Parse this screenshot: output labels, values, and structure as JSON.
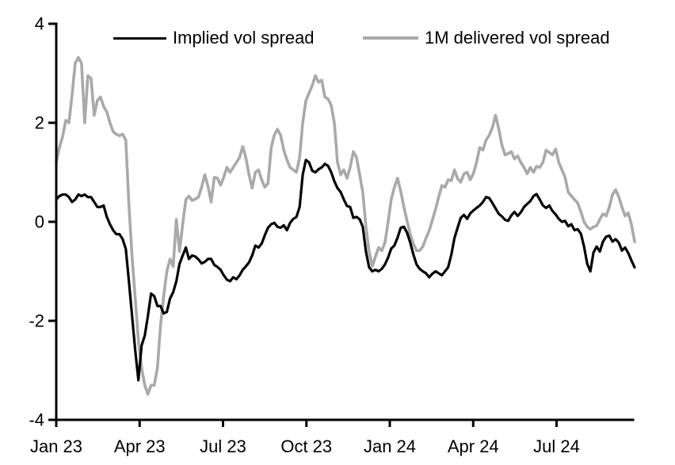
{
  "chart_data": {
    "type": "line",
    "title": "",
    "grid": false,
    "legend_position": "top-inside",
    "axis_color": "#000000",
    "background_color": "#ffffff",
    "x_axis": {
      "label": "",
      "min": 0,
      "max": 20.75,
      "ticks": [
        {
          "pos": 0,
          "label": "Jan 23"
        },
        {
          "pos": 3,
          "label": "Apr 23"
        },
        {
          "pos": 6,
          "label": "Jul 23"
        },
        {
          "pos": 9,
          "label": "Oct 23"
        },
        {
          "pos": 12,
          "label": "Jan 24"
        },
        {
          "pos": 15,
          "label": "Apr 24"
        },
        {
          "pos": 18,
          "label": "Jul 24"
        }
      ]
    },
    "y_axis": {
      "label": "",
      "min": -4,
      "max": 4,
      "ticks": [
        {
          "pos": 4,
          "label": "4"
        },
        {
          "pos": 2,
          "label": "2"
        },
        {
          "pos": 0,
          "label": "0"
        },
        {
          "pos": -2,
          "label": "-2"
        },
        {
          "pos": -4,
          "label": "-4"
        }
      ]
    },
    "sample_x_start": 0,
    "sample_x_step": 0.1137,
    "series": [
      {
        "name": "Implied vol spread",
        "color": "#000000",
        "stroke_width": 3.2,
        "values": [
          0.45,
          0.52,
          0.55,
          0.55,
          0.5,
          0.4,
          0.45,
          0.55,
          0.52,
          0.55,
          0.5,
          0.5,
          0.4,
          0.3,
          0.3,
          0.33,
          0.1,
          -0.05,
          -0.17,
          -0.25,
          -0.25,
          -0.35,
          -0.55,
          -1.2,
          -1.9,
          -2.6,
          -3.2,
          -2.5,
          -2.3,
          -1.9,
          -1.45,
          -1.5,
          -1.7,
          -1.7,
          -1.85,
          -1.82,
          -1.55,
          -1.42,
          -1.2,
          -0.85,
          -0.68,
          -0.52,
          -0.75,
          -0.68,
          -0.7,
          -0.76,
          -0.84,
          -0.81,
          -0.75,
          -0.75,
          -0.87,
          -0.91,
          -0.97,
          -1.08,
          -1.17,
          -1.2,
          -1.12,
          -1.16,
          -1.08,
          -0.97,
          -0.9,
          -0.82,
          -0.68,
          -0.48,
          -0.52,
          -0.44,
          -0.27,
          -0.12,
          -0.05,
          -0.02,
          -0.1,
          -0.12,
          -0.07,
          -0.17,
          -0.02,
          0.06,
          0.1,
          0.3,
          0.95,
          1.25,
          1.2,
          1.03,
          1.0,
          1.06,
          1.1,
          1.17,
          1.13,
          1.0,
          0.82,
          0.68,
          0.6,
          0.45,
          0.32,
          0.3,
          0.08,
          0.1,
          0.05,
          -0.1,
          -0.6,
          -0.92,
          -1.0,
          -0.97,
          -1.0,
          -0.95,
          -0.86,
          -0.72,
          -0.54,
          -0.48,
          -0.32,
          -0.12,
          -0.1,
          -0.22,
          -0.42,
          -0.66,
          -0.86,
          -0.95,
          -1.0,
          -1.04,
          -1.12,
          -1.05,
          -1.0,
          -1.04,
          -1.08,
          -1.0,
          -0.92,
          -0.67,
          -0.33,
          -0.12,
          0.08,
          0.14,
          0.06,
          0.17,
          0.23,
          0.28,
          0.33,
          0.4,
          0.5,
          0.48,
          0.38,
          0.27,
          0.16,
          0.11,
          0.04,
          0.02,
          0.13,
          0.2,
          0.12,
          0.19,
          0.3,
          0.36,
          0.42,
          0.52,
          0.56,
          0.45,
          0.33,
          0.28,
          0.33,
          0.22,
          0.15,
          0.06,
          0.0,
          0.02,
          -0.09,
          -0.05,
          -0.17,
          -0.15,
          -0.24,
          -0.5,
          -0.85,
          -1.0,
          -0.62,
          -0.5,
          -0.6,
          -0.4,
          -0.3,
          -0.28,
          -0.4,
          -0.35,
          -0.42,
          -0.58,
          -0.52,
          -0.63,
          -0.78,
          -0.92
        ]
      },
      {
        "name": "1M delivered vol spread",
        "color": "#a9a9a9",
        "stroke_width": 3.6,
        "values": [
          1.2,
          1.5,
          1.72,
          2.05,
          2.0,
          2.55,
          3.2,
          3.32,
          3.2,
          2.0,
          2.95,
          2.9,
          2.15,
          2.45,
          2.52,
          2.33,
          2.22,
          2.0,
          1.82,
          1.77,
          1.74,
          1.77,
          1.65,
          0.35,
          -0.7,
          -1.55,
          -2.4,
          -2.95,
          -3.3,
          -3.48,
          -3.3,
          -3.3,
          -2.95,
          -2.1,
          -1.5,
          -1.0,
          -0.75,
          -0.9,
          0.05,
          -0.6,
          -0.05,
          0.45,
          0.52,
          0.43,
          0.46,
          0.5,
          0.7,
          0.95,
          0.72,
          0.4,
          0.9,
          0.88,
          0.74,
          0.9,
          1.1,
          1.0,
          1.1,
          1.2,
          1.3,
          1.52,
          1.3,
          0.95,
          0.68,
          1.0,
          1.05,
          0.85,
          0.7,
          0.78,
          1.5,
          1.75,
          1.87,
          1.75,
          1.45,
          1.25,
          1.1,
          1.05,
          1.0,
          1.3,
          2.0,
          2.45,
          2.6,
          2.75,
          2.95,
          2.82,
          2.86,
          2.52,
          2.48,
          2.35,
          2.0,
          1.2,
          0.95,
          1.05,
          0.88,
          1.1,
          1.42,
          1.3,
          0.95,
          0.6,
          -0.1,
          -0.6,
          -0.9,
          -0.7,
          -0.52,
          -0.58,
          -0.42,
          0.0,
          0.45,
          0.7,
          0.88,
          0.62,
          0.3,
          0.02,
          -0.25,
          -0.45,
          -0.58,
          -0.58,
          -0.5,
          -0.33,
          -0.18,
          0.03,
          0.25,
          0.5,
          0.73,
          0.7,
          0.85,
          0.83,
          1.05,
          0.87,
          0.8,
          0.97,
          1.0,
          0.85,
          0.98,
          1.2,
          1.5,
          1.45,
          1.65,
          1.75,
          1.9,
          2.15,
          1.88,
          1.55,
          1.35,
          1.38,
          1.42,
          1.27,
          1.33,
          1.2,
          1.1,
          0.97,
          1.1,
          1.0,
          1.12,
          1.1,
          1.2,
          1.45,
          1.4,
          1.35,
          1.47,
          1.2,
          1.05,
          0.9,
          0.6,
          0.52,
          0.45,
          0.38,
          0.2,
          0.0,
          -0.1,
          -0.15,
          -0.1,
          -0.08,
          0.05,
          0.16,
          0.12,
          0.3,
          0.55,
          0.65,
          0.5,
          0.3,
          0.12,
          0.18,
          -0.05,
          -0.4
        ]
      }
    ]
  }
}
